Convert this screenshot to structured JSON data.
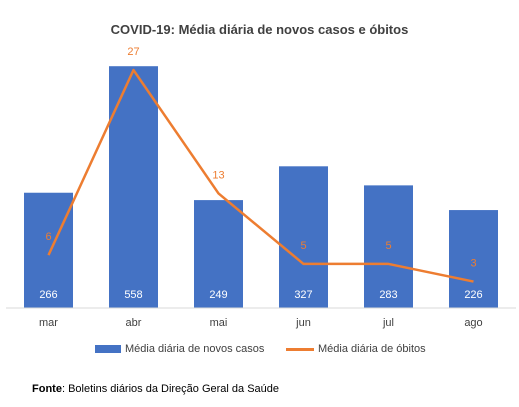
{
  "colors": {
    "bar": "#4472C4",
    "line": "#ED7D31",
    "text": "#404040"
  },
  "chart_data": {
    "type": "bar",
    "title": "COVID-19: Média diária de novos casos e óbitos",
    "categories": [
      "mar",
      "abr",
      "mai",
      "jun",
      "jul",
      "ago"
    ],
    "series": [
      {
        "name": "Média diária de novos casos",
        "type": "bar",
        "axis": "primary",
        "values": [
          266,
          558,
          249,
          327,
          283,
          226
        ]
      },
      {
        "name": "Média diária de óbitos",
        "type": "line",
        "axis": "secondary",
        "values": [
          6,
          27,
          13,
          5,
          5,
          3
        ]
      }
    ],
    "ylim": [
      0,
      600
    ],
    "y2lim": [
      0,
      29.5
    ],
    "grid": false,
    "legend": "bottom"
  },
  "source": {
    "label": "Fonte",
    "text": ": Boletins diários da Direção Geral da Saúde"
  }
}
